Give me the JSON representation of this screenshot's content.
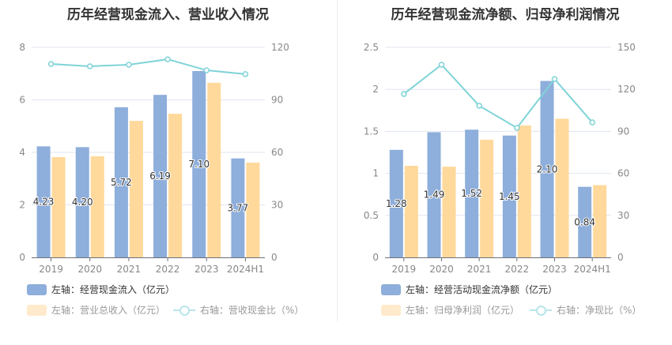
{
  "chart_data": [
    {
      "type": "bar",
      "title": "历年经营现金流入、营业收入情况",
      "categories": [
        "2019",
        "2020",
        "2021",
        "2022",
        "2023",
        "2024H1"
      ],
      "y_left": {
        "ylim": [
          0,
          8
        ],
        "ticks": [
          "0",
          "2",
          "4",
          "6",
          "8"
        ]
      },
      "y_right": {
        "ylim": [
          0,
          120
        ],
        "ticks": [
          "0",
          "30",
          "60",
          "90",
          "120"
        ]
      },
      "grid": true,
      "legend_position": "bottom-left",
      "series": [
        {
          "name": "左轴：经营现金流入（亿元）",
          "type": "bar",
          "axis": "left",
          "color": "#8eaedb",
          "values": [
            4.23,
            4.2,
            5.72,
            6.19,
            7.1,
            3.77
          ],
          "labels": [
            "4.23",
            "4.20",
            "5.72",
            "6.19",
            "7.10",
            "3.77"
          ]
        },
        {
          "name": "左轴：营业总收入（亿元）",
          "type": "bar",
          "axis": "left",
          "color": "#ffd99b",
          "values": [
            3.82,
            3.85,
            5.2,
            5.47,
            6.65,
            3.61
          ]
        },
        {
          "name": "右轴：营收现金比（%）",
          "type": "line",
          "axis": "right",
          "color": "#7fd3d8",
          "values": [
            110.5,
            109.2,
            110.1,
            113.2,
            106.9,
            104.7
          ]
        }
      ]
    },
    {
      "type": "bar",
      "title": "历年经营现金流净额、归母净利润情况",
      "categories": [
        "2019",
        "2020",
        "2021",
        "2022",
        "2023",
        "2024H1"
      ],
      "y_left": {
        "ylim": [
          0,
          2.5
        ],
        "ticks": [
          "0",
          "0.5",
          "1",
          "1.5",
          "2",
          "2.5"
        ]
      },
      "y_right": {
        "ylim": [
          0,
          150
        ],
        "ticks": [
          "0",
          "30",
          "60",
          "90",
          "120",
          "150"
        ]
      },
      "grid": true,
      "legend_position": "bottom-left",
      "series": [
        {
          "name": "左轴：经营活动现金流净额（亿元）",
          "type": "bar",
          "axis": "left",
          "color": "#8eaedb",
          "values": [
            1.28,
            1.49,
            1.52,
            1.45,
            2.1,
            0.84
          ],
          "labels": [
            "1.28",
            "1.49",
            "1.52",
            "1.45",
            "2.10",
            "0.84"
          ]
        },
        {
          "name": "左轴：归母净利润（亿元）",
          "type": "bar",
          "axis": "left",
          "color": "#ffd99b",
          "values": [
            1.09,
            1.08,
            1.4,
            1.57,
            1.65,
            0.86
          ]
        },
        {
          "name": "右轴：净现比（%）",
          "type": "line",
          "axis": "right",
          "color": "#7fd3d8",
          "values": [
            116.7,
            137.6,
            108.3,
            92.5,
            127.4,
            96.4
          ]
        }
      ]
    }
  ],
  "legend_colors": {
    "active_text": "#333333",
    "inactive_text": "#999999",
    "inactive_bar2": "#ffeacc",
    "inactive_line": "#b9e6ea"
  }
}
